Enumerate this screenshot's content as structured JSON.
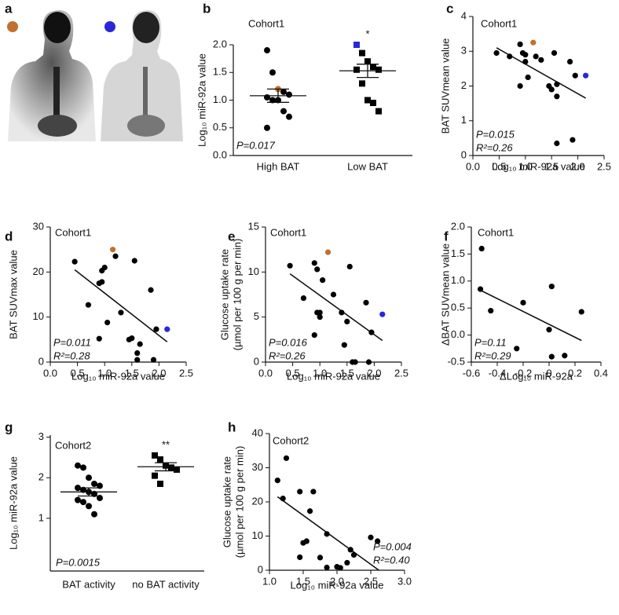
{
  "image_panel": {
    "panel": "a"
  },
  "chart_data": [
    {
      "type": "dot",
      "panel": "b",
      "cohort": "Cohort1",
      "p_text": "P=0.017",
      "ylabel": [
        "Log₁₀ miR-92a value"
      ],
      "categories": [
        "High BAT",
        "Low BAT"
      ],
      "significance": [
        null,
        "*"
      ],
      "ylim": [
        0,
        2.0
      ],
      "yticks": [
        {
          "value": 0,
          "label": "0.0"
        },
        0.5,
        {
          "value": 1,
          "label": "1.0"
        },
        1.5,
        {
          "value": 2,
          "label": "2.0"
        }
      ],
      "groups": [
        {
          "marker": "circle",
          "values": [
            1.9,
            1.5,
            1.2,
            1.15,
            1.1,
            1.05,
            1.0,
            1.0,
            0.8,
            0.7,
            0.5
          ],
          "mean": 1.08,
          "sem": 0.12,
          "highlights": [
            {
              "index": 2,
              "color": "#c0712e"
            }
          ]
        },
        {
          "marker": "square",
          "values": [
            2.0,
            1.85,
            1.7,
            1.6,
            1.55,
            1.55,
            1.3,
            1.0,
            0.95,
            0.8
          ],
          "mean": 1.53,
          "sem": 0.12,
          "highlights": [
            {
              "index": 0,
              "color": "#2828d8"
            }
          ]
        }
      ]
    },
    {
      "type": "scatter",
      "panel": "c",
      "cohort": "Cohort1",
      "p_text": "P=0.015",
      "r2_text": "R²=0.26",
      "ylabel": [
        "BAT SUVmean value"
      ],
      "xlabel": "Log₁₀ miR-92a value",
      "xlim": [
        0,
        2.5
      ],
      "xticks": [
        {
          "value": 0,
          "label": "0.0"
        },
        0.5,
        {
          "value": 1,
          "label": "1.0"
        },
        1.5,
        {
          "value": 2,
          "label": "2.0"
        },
        2.5
      ],
      "ylim": [
        0,
        4
      ],
      "yticks": [
        0,
        1,
        2,
        3,
        4
      ],
      "x": [
        0.45,
        0.7,
        0.9,
        0.9,
        0.95,
        1.0,
        1.0,
        1.05,
        1.15,
        1.2,
        1.3,
        1.45,
        1.5,
        1.55,
        1.6,
        1.6,
        1.6,
        1.85,
        1.9,
        1.95,
        2.15
      ],
      "y": [
        2.95,
        2.85,
        3.2,
        2.0,
        2.95,
        2.9,
        2.7,
        2.25,
        3.25,
        2.85,
        2.75,
        2.0,
        1.9,
        2.95,
        2.05,
        1.7,
        0.35,
        2.7,
        0.45,
        2.3,
        2.3
      ],
      "highlights": [
        {
          "index": 8,
          "color": "#c0712e"
        },
        {
          "index": 20,
          "color": "#2828d8"
        }
      ],
      "fit": {
        "x": [
          0.45,
          2.15
        ],
        "y": [
          3.1,
          1.65
        ]
      }
    },
    {
      "type": "scatter",
      "panel": "d",
      "cohort": "Cohort1",
      "p_text": "P=0.011",
      "r2_text": "R²=0.28",
      "ylabel": [
        "BAT SUVmax value"
      ],
      "xlabel": "Log₁₀ miR-92a value",
      "xlim": [
        0,
        2.5
      ],
      "xticks": [
        {
          "value": 0,
          "label": "0.0"
        },
        0.5,
        {
          "value": 1,
          "label": "1.0"
        },
        1.5,
        {
          "value": 2,
          "label": "2.0"
        },
        2.5
      ],
      "ylim": [
        0,
        30
      ],
      "yticks": [
        0,
        10,
        20,
        30
      ],
      "x": [
        0.45,
        0.7,
        0.9,
        0.9,
        0.95,
        0.95,
        1.0,
        1.05,
        1.15,
        1.2,
        1.3,
        1.45,
        1.5,
        1.55,
        1.6,
        1.6,
        1.65,
        1.85,
        1.9,
        1.95,
        2.15
      ],
      "y": [
        22.3,
        12.7,
        17.5,
        5.2,
        20.3,
        17.8,
        21,
        8.8,
        25,
        23.5,
        11,
        5,
        5.3,
        22.5,
        2,
        0.5,
        4,
        16,
        0.5,
        7.3,
        7.3
      ],
      "highlights": [
        {
          "index": 8,
          "color": "#c0712e"
        },
        {
          "index": 20,
          "color": "#2828d8"
        }
      ],
      "fit": {
        "x": [
          0.45,
          2.15
        ],
        "y": [
          20.5,
          4.5
        ]
      }
    },
    {
      "type": "scatter",
      "panel": "e",
      "cohort": "Cohort1",
      "p_text": "P=0.016",
      "r2_text": "R²=0.26",
      "ylabel": [
        "Glucose uptake rate",
        "(µmol per 100 g per min)"
      ],
      "xlabel": "Log₁₀ miR-92a value",
      "xlim": [
        0,
        2.5
      ],
      "xticks": [
        {
          "value": 0,
          "label": "0.0"
        },
        0.5,
        {
          "value": 1,
          "label": "1.0"
        },
        1.5,
        {
          "value": 2,
          "label": "2.0"
        },
        2.5
      ],
      "ylim": [
        0,
        15
      ],
      "yticks": [
        0,
        5,
        10,
        15
      ],
      "x": [
        0.45,
        0.7,
        0.9,
        0.9,
        0.95,
        0.95,
        1.0,
        1.0,
        1.05,
        1.15,
        1.25,
        1.4,
        1.5,
        1.55,
        1.6,
        1.65,
        1.45,
        1.85,
        1.9,
        1.95,
        2.15
      ],
      "y": [
        10.7,
        7.1,
        11,
        3,
        10.3,
        5.5,
        5,
        5.5,
        9.1,
        12.2,
        7.5,
        5.5,
        4.5,
        10.6,
        0,
        0,
        1.9,
        6.6,
        0,
        3.3,
        5.3
      ],
      "highlights": [
        {
          "index": 9,
          "color": "#c0712e"
        },
        {
          "index": 20,
          "color": "#2828d8"
        }
      ],
      "fit": {
        "x": [
          0.45,
          2.15
        ],
        "y": [
          9.8,
          2.4
        ]
      }
    },
    {
      "type": "scatter",
      "panel": "f",
      "cohort": "Cohort1",
      "p_text": "P=0.11",
      "r2_text": "R²=0.29",
      "ylabel": [
        "ΔBAT SUVmean value"
      ],
      "xlabel": "ΔLog₁₀ miR-92a",
      "xlim": [
        -0.6,
        0.4
      ],
      "xticks": [
        -0.6,
        -0.4,
        -0.2,
        0,
        0.2,
        0.4
      ],
      "ylim": [
        -0.5,
        2.0
      ],
      "yticks": [
        -0.5,
        {
          "value": 0,
          "label": "0.0"
        },
        0.5,
        {
          "value": 1,
          "label": "1.0"
        },
        1.5,
        {
          "value": 2,
          "label": "2.0"
        }
      ],
      "x": [
        -0.52,
        -0.53,
        -0.45,
        -0.25,
        -0.2,
        0.0,
        0.02,
        0.02,
        0.12,
        0.25
      ],
      "y": [
        1.6,
        0.85,
        0.45,
        -0.25,
        0.6,
        0.1,
        0.9,
        -0.4,
        -0.38,
        0.43
      ],
      "highlights": [],
      "fit": {
        "x": [
          -0.53,
          0.25
        ],
        "y": [
          0.83,
          -0.1
        ]
      }
    },
    {
      "type": "dot",
      "panel": "g",
      "cohort": "Cohort2",
      "p_text": "P=0.0015",
      "ylabel": [
        "Log₁₀ miR-92a value"
      ],
      "categories": [
        "BAT activity",
        "no BAT activity"
      ],
      "significance": [
        null,
        "**"
      ],
      "ylim": [
        -0.3,
        3.05
      ],
      "yticks": [
        1,
        2,
        3
      ],
      "groups": [
        {
          "marker": "circle",
          "values": [
            2.3,
            2.25,
            2.0,
            1.85,
            1.8,
            1.75,
            1.7,
            1.65,
            1.6,
            1.5,
            1.45,
            1.4,
            1.3,
            1.1
          ],
          "mean": 1.65,
          "sem": 0.1,
          "highlights": []
        },
        {
          "marker": "square",
          "values": [
            2.55,
            2.45,
            2.3,
            2.25,
            2.2,
            2.05,
            1.85
          ],
          "mean": 2.27,
          "sem": 0.1,
          "highlights": []
        }
      ]
    },
    {
      "type": "scatter",
      "panel": "h",
      "cohort": "Cohort2",
      "p_text": "P=0.004",
      "r2_text": "R²=0.40",
      "ylabel": [
        "Glucose uptake rate",
        "(µmol per 100 g per min)"
      ],
      "xlabel": "Log₁₀ miR-92a value",
      "xlim": [
        1.0,
        3.0
      ],
      "xticks": [
        {
          "value": 1,
          "label": "1.0"
        },
        1.5,
        {
          "value": 2,
          "label": "2.0"
        },
        2.5,
        {
          "value": 3,
          "label": "3.0"
        }
      ],
      "ylim": [
        0,
        40
      ],
      "yticks": [
        0,
        10,
        20,
        30,
        40
      ],
      "x": [
        1.12,
        1.2,
        1.25,
        1.45,
        1.5,
        1.45,
        1.55,
        1.6,
        1.65,
        1.75,
        1.85,
        1.85,
        2.0,
        2.05,
        2.15,
        2.2,
        2.25,
        2.5,
        2.6
      ],
      "y": [
        26.3,
        21,
        32.8,
        23,
        8,
        3.8,
        8.5,
        17.3,
        23,
        3.7,
        10.6,
        0.8,
        1,
        0.7,
        2.2,
        6,
        4.5,
        9.6,
        8.5
      ],
      "highlights": [],
      "fit": {
        "x": [
          1.12,
          2.62
        ],
        "y": [
          21.5,
          0
        ]
      }
    }
  ]
}
